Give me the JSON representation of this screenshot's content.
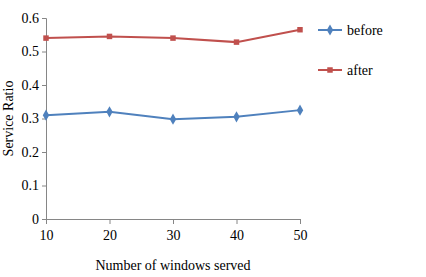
{
  "chart_data": {
    "type": "line",
    "x_label": "Number of windows served",
    "y_label": "Service Ratio",
    "x": [
      10,
      20,
      30,
      40,
      50
    ],
    "series": [
      {
        "name": "before",
        "color": "#4f81bd",
        "marker": "diamond",
        "values": [
          0.31,
          0.32,
          0.298,
          0.305,
          0.325
        ]
      },
      {
        "name": "after",
        "color": "#c0504d",
        "marker": "square",
        "values": [
          0.54,
          0.545,
          0.54,
          0.528,
          0.565
        ]
      }
    ],
    "xlim": [
      10,
      50
    ],
    "xticks": [
      10,
      20,
      30,
      40,
      50
    ],
    "ylim": [
      0,
      0.6
    ],
    "yticks": [
      0,
      0.1,
      0.2,
      0.3,
      0.4,
      0.5,
      0.6
    ],
    "grid": false,
    "legend": "right"
  }
}
